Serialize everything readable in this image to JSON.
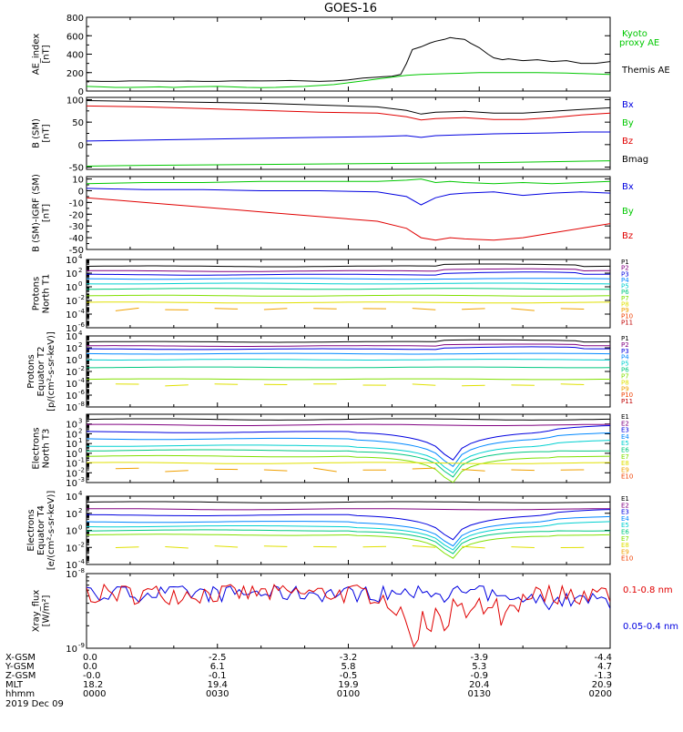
{
  "title": "GOES-16",
  "colors": {
    "black": "#000000",
    "blue": "#0000e0",
    "green": "#00c800",
    "red": "#e00000",
    "p": [
      "#000000",
      "#800080",
      "#0000e0",
      "#0088ff",
      "#00d0d0",
      "#00c880",
      "#80e000",
      "#e0e000",
      "#f0a000",
      "#f04000",
      "#c00000"
    ],
    "e": [
      "#000000",
      "#800080",
      "#0000e0",
      "#0088ff",
      "#00d0d0",
      "#00c880",
      "#80e000",
      "#e0e000",
      "#f0a000",
      "#f04000",
      "#c00000"
    ]
  },
  "chart_data": [
    {
      "id": "ae",
      "type": "line",
      "ylabel": [
        "AE_index",
        "[nT]"
      ],
      "ylim": [
        0,
        800
      ],
      "yticks": [
        "0",
        "200",
        "400",
        "600",
        "800"
      ],
      "legend": [
        {
          "name": "Kyoto",
          "color": "#00c800"
        },
        {
          "name": "proxy AE",
          "color": "#00c800"
        },
        {
          "name": "Themis AE",
          "color": "#000000"
        }
      ],
      "series": [
        {
          "name": "Themis AE",
          "color": "#000000",
          "x": [
            0,
            5,
            10,
            15,
            20,
            25,
            30,
            35,
            40,
            45,
            50,
            55,
            60,
            65,
            70,
            75,
            80,
            85,
            90,
            95,
            100,
            102,
            105,
            108,
            110,
            112,
            115,
            118,
            120,
            123,
            125,
            127,
            130,
            132,
            135,
            138,
            140,
            143,
            145,
            150,
            155,
            160,
            165,
            170,
            175,
            180
          ],
          "y": [
            110,
            105,
            105,
            110,
            110,
            108,
            107,
            109,
            105,
            105,
            110,
            112,
            110,
            112,
            115,
            110,
            105,
            110,
            120,
            140,
            150,
            155,
            160,
            180,
            300,
            450,
            480,
            520,
            540,
            560,
            580,
            570,
            560,
            520,
            470,
            400,
            360,
            340,
            350,
            330,
            340,
            320,
            330,
            300,
            300,
            320
          ]
        },
        {
          "name": "Kyoto proxy AE",
          "color": "#00c800",
          "x": [
            0,
            5,
            10,
            15,
            20,
            25,
            30,
            35,
            40,
            45,
            50,
            55,
            60,
            65,
            70,
            75,
            80,
            85,
            90,
            95,
            100,
            105,
            110,
            115,
            120,
            125,
            130,
            135,
            140,
            145,
            150,
            155,
            160,
            165,
            170,
            175,
            180
          ],
          "y": [
            50,
            45,
            40,
            40,
            42,
            45,
            40,
            45,
            48,
            50,
            45,
            40,
            38,
            40,
            45,
            50,
            60,
            70,
            90,
            110,
            130,
            150,
            170,
            180,
            185,
            190,
            195,
            200,
            200,
            200,
            200,
            200,
            198,
            195,
            190,
            185,
            180
          ]
        }
      ]
    },
    {
      "id": "bsm",
      "type": "line",
      "ylabel": [
        "B (SM)",
        "[nT]"
      ],
      "ylim": [
        -55,
        105
      ],
      "ytickvals": [
        -50,
        0,
        50,
        100
      ],
      "yticks": [
        "-50",
        "0",
        "50",
        "100"
      ],
      "legend": [
        {
          "name": "Bx",
          "color": "#0000e0"
        },
        {
          "name": "By",
          "color": "#00c800"
        },
        {
          "name": "Bz",
          "color": "#e00000"
        },
        {
          "name": "Bmag",
          "color": "#000000"
        }
      ],
      "series": [
        {
          "name": "Bmag",
          "color": "#000000",
          "x": [
            0,
            20,
            40,
            60,
            80,
            100,
            110,
            115,
            120,
            130,
            140,
            150,
            160,
            170,
            180
          ],
          "y": [
            98,
            96,
            94,
            92,
            88,
            84,
            76,
            68,
            72,
            74,
            70,
            70,
            74,
            78,
            82
          ]
        },
        {
          "name": "Bz",
          "color": "#e00000",
          "x": [
            0,
            20,
            40,
            60,
            80,
            100,
            110,
            115,
            120,
            130,
            140,
            150,
            160,
            170,
            180
          ],
          "y": [
            86,
            84,
            80,
            76,
            72,
            70,
            62,
            55,
            58,
            60,
            56,
            56,
            60,
            66,
            70
          ]
        },
        {
          "name": "Bx",
          "color": "#0000e0",
          "x": [
            0,
            20,
            40,
            60,
            80,
            100,
            110,
            115,
            120,
            130,
            140,
            150,
            160,
            170,
            180
          ],
          "y": [
            8,
            10,
            12,
            14,
            16,
            18,
            20,
            16,
            20,
            22,
            24,
            25,
            26,
            28,
            28
          ]
        },
        {
          "name": "By",
          "color": "#00c800",
          "x": [
            0,
            20,
            40,
            60,
            80,
            100,
            120,
            140,
            160,
            180
          ],
          "y": [
            -48,
            -46,
            -45,
            -44,
            -43,
            -42,
            -41,
            -40,
            -38,
            -36
          ]
        }
      ]
    },
    {
      "id": "bigrf",
      "type": "line",
      "ylabel": [
        "B (SM)-IGRF (SM)",
        "[nT]"
      ],
      "ylim": [
        -50,
        12
      ],
      "ytickvals": [
        10,
        0,
        -10,
        -20,
        -30,
        -40,
        -50
      ],
      "yticks": [
        "10",
        "0",
        "-10",
        "-20",
        "-30",
        "-40",
        "-50"
      ],
      "legend": [
        {
          "name": "Bx",
          "color": "#0000e0"
        },
        {
          "name": "By",
          "color": "#00c800"
        },
        {
          "name": "Bz",
          "color": "#e00000"
        }
      ],
      "series": [
        {
          "name": "By",
          "color": "#00c800",
          "x": [
            0,
            20,
            40,
            60,
            80,
            100,
            110,
            115,
            120,
            125,
            130,
            140,
            150,
            160,
            170,
            180
          ],
          "y": [
            6,
            7,
            7,
            8,
            8,
            8,
            9,
            10,
            7,
            8,
            7,
            6,
            7,
            6,
            7,
            8
          ]
        },
        {
          "name": "Bx",
          "color": "#0000e0",
          "x": [
            0,
            20,
            40,
            60,
            80,
            100,
            110,
            115,
            120,
            125,
            130,
            140,
            150,
            160,
            170,
            180
          ],
          "y": [
            2,
            1,
            1,
            0,
            0,
            -1,
            -5,
            -12,
            -6,
            -3,
            -2,
            -1,
            -4,
            -2,
            -1,
            -2
          ]
        },
        {
          "name": "Bz",
          "color": "#e00000",
          "x": [
            0,
            10,
            20,
            40,
            60,
            80,
            100,
            110,
            115,
            120,
            125,
            130,
            140,
            150,
            160,
            170,
            180
          ],
          "y": [
            -6,
            -8,
            -10,
            -14,
            -18,
            -22,
            -26,
            -32,
            -40,
            -42,
            -40,
            -41,
            -42,
            -40,
            -36,
            -32,
            -28
          ]
        }
      ]
    },
    {
      "id": "pnorth",
      "type": "line",
      "log": true,
      "ylabel": [
        "Protons",
        "North T1"
      ],
      "ylim": [
        1e-06,
        10000.0
      ],
      "ytickexp": [
        4,
        2,
        0,
        -2,
        -4,
        -6
      ],
      "legend": [
        "P1",
        "P2",
        "P3",
        "P4",
        "P5",
        "P6",
        "P7",
        "P8",
        "P9",
        "P10",
        "P11"
      ],
      "levels": [
        1000,
        200,
        60,
        15,
        3,
        0.5,
        0.05,
        0.005,
        0.0005
      ]
    },
    {
      "id": "peq",
      "type": "line",
      "log": true,
      "ylabel": [
        "Protons",
        "Equator T2",
        "[p/(cm²-s-sr-keV)]"
      ],
      "ylim": [
        1e-08,
        10000.0
      ],
      "ytickexp": [
        4,
        2,
        0,
        -2,
        -4,
        -6,
        -8
      ],
      "legend": [
        "P1",
        "P2",
        "P3",
        "P4",
        "P5",
        "P6",
        "P7",
        "P8",
        "P9",
        "P10",
        "P11"
      ],
      "levels": [
        1000,
        200,
        60,
        10,
        1,
        0.05,
        0.0005,
        5e-05
      ]
    },
    {
      "id": "enorth",
      "type": "line",
      "log": true,
      "ylabel": [
        "Electrons",
        "North T3"
      ],
      "ylim": [
        0.001,
        10000.0
      ],
      "ytickexp": [
        3,
        2,
        1,
        0,
        -1,
        -2,
        -3
      ],
      "legend": [
        "E1",
        "E2",
        "E3",
        "E4",
        "E5",
        "E6",
        "E7",
        "E8",
        "E9",
        "E10"
      ],
      "levels": [
        3000,
        800,
        150,
        30,
        6,
        2,
        0.5,
        0.1,
        0.02
      ]
    },
    {
      "id": "eeq",
      "type": "line",
      "log": true,
      "ylabel": [
        "Electrons",
        "Equator T4",
        "[e/(cm²-s-sr-keV)]"
      ],
      "ylim": [
        0.0001,
        10000.0
      ],
      "ytickexp": [
        4,
        2,
        0,
        -2,
        -4
      ],
      "legend": [
        "E1",
        "E2",
        "E3",
        "E4",
        "E5",
        "E6",
        "E7",
        "E8",
        "E9",
        "E10"
      ],
      "levels": [
        2000,
        300,
        60,
        10,
        3,
        1,
        0.3,
        0.01
      ]
    },
    {
      "id": "xray",
      "type": "line",
      "log": true,
      "ylabel": [
        "Xray_flux",
        "[W/m²]"
      ],
      "ylim": [
        1e-09,
        1e-08
      ],
      "ytickexp": [
        -8,
        -9
      ],
      "legend": [
        {
          "name": "0.1-0.8 nm",
          "color": "#e00000"
        },
        {
          "name": "0.05-0.4 nm",
          "color": "#0000e0"
        }
      ]
    }
  ],
  "xaxis": {
    "rows": [
      {
        "label": "X-GSM",
        "values": [
          "0.0",
          "-2.5",
          "-3.2",
          "-3.9",
          "-4.4"
        ]
      },
      {
        "label": "Y-GSM",
        "values": [
          "0.0",
          "6.1",
          "5.8",
          "5.3",
          "4.7"
        ]
      },
      {
        "label": "Z-GSM",
        "values": [
          "-0.0",
          "-0.1",
          "-0.5",
          "-0.9",
          "-1.3"
        ]
      },
      {
        "label": "MLT",
        "values": [
          "18.2",
          "19.4",
          "19.9",
          "20.4",
          "20.9"
        ]
      },
      {
        "label": "hhmm",
        "values": [
          "0000",
          "0030",
          "0100",
          "0130",
          "0200"
        ]
      }
    ],
    "date": "2019 Dec 09",
    "xlim": [
      0,
      180
    ]
  }
}
